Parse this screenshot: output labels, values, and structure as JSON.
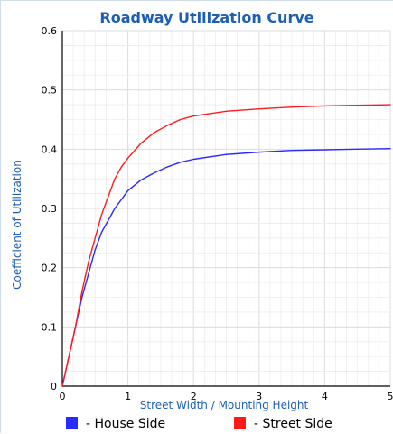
{
  "colors": {
    "title": "#1d5fb3",
    "grid": "#dcdcdc",
    "axis": "#000000",
    "house_side": "#2a2aff",
    "street_side": "#ff1a1a"
  },
  "chart_data": {
    "type": "line",
    "title": "Roadway Utilization Curve",
    "xlabel": "Street Width / Mounting Height",
    "ylabel": "Coefficient of Utilization",
    "xlim": [
      0,
      5
    ],
    "ylim": [
      0,
      0.6
    ],
    "xticks": [
      "0",
      "1",
      "2",
      "3",
      "4",
      "5"
    ],
    "yticks": [
      "0",
      "0.1",
      "0.2",
      "0.3",
      "0.4",
      "0.5",
      "0.6"
    ],
    "grid": true,
    "legend_position": "bottom",
    "series": [
      {
        "name": "- House Side",
        "color": "#2a2aff",
        "x": [
          0,
          0.1,
          0.2,
          0.3,
          0.4,
          0.5,
          0.6,
          0.7,
          0.8,
          0.9,
          1.0,
          1.2,
          1.4,
          1.6,
          1.8,
          2.0,
          2.5,
          3.0,
          3.5,
          4.0,
          4.5,
          5.0
        ],
        "y": [
          0,
          0.05,
          0.1,
          0.15,
          0.19,
          0.23,
          0.26,
          0.28,
          0.3,
          0.315,
          0.33,
          0.348,
          0.36,
          0.37,
          0.378,
          0.383,
          0.391,
          0.395,
          0.398,
          0.399,
          0.4,
          0.401
        ]
      },
      {
        "name": "- Street Side",
        "color": "#ff1a1a",
        "x": [
          0,
          0.1,
          0.2,
          0.3,
          0.4,
          0.5,
          0.6,
          0.7,
          0.8,
          0.9,
          1.0,
          1.2,
          1.4,
          1.6,
          1.8,
          2.0,
          2.5,
          3.0,
          3.5,
          4.0,
          4.5,
          5.0
        ],
        "y": [
          0,
          0.05,
          0.1,
          0.16,
          0.21,
          0.25,
          0.29,
          0.32,
          0.35,
          0.37,
          0.385,
          0.41,
          0.428,
          0.44,
          0.45,
          0.456,
          0.464,
          0.468,
          0.471,
          0.473,
          0.474,
          0.475
        ]
      }
    ]
  }
}
